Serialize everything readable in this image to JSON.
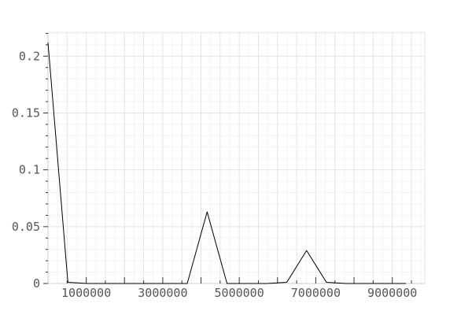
{
  "chart_data": {
    "type": "line",
    "title": "",
    "xlabel": "",
    "ylabel": "",
    "xlim": [
      0,
      9850000
    ],
    "ylim": [
      0,
      0.221
    ],
    "grid": true,
    "x_ticks": [
      1000000,
      3000000,
      5000000,
      7000000,
      9000000
    ],
    "x_tick_labels": [
      "1000000",
      "3000000",
      "5000000",
      "7000000",
      "9000000"
    ],
    "y_ticks": [
      0,
      0.05,
      0.1,
      0.15,
      0.2
    ],
    "y_tick_labels": [
      "0",
      "0.05",
      "0.1",
      "0.15",
      "0.2"
    ],
    "line_color": "#000000",
    "series": [
      {
        "x": [
          0,
          520000,
          1040000,
          1560000,
          2080000,
          2600000,
          3120000,
          3640000,
          4160000,
          4680000,
          5200000,
          5720000,
          6240000,
          6760000,
          7280000,
          7800000,
          8320000,
          8840000,
          9360000
        ],
        "y": [
          0.212,
          0.001,
          0,
          0,
          0,
          0,
          0,
          0,
          0.063,
          0,
          0,
          0,
          0.001,
          0.029,
          0.001,
          0,
          0,
          0,
          0
        ]
      }
    ]
  }
}
